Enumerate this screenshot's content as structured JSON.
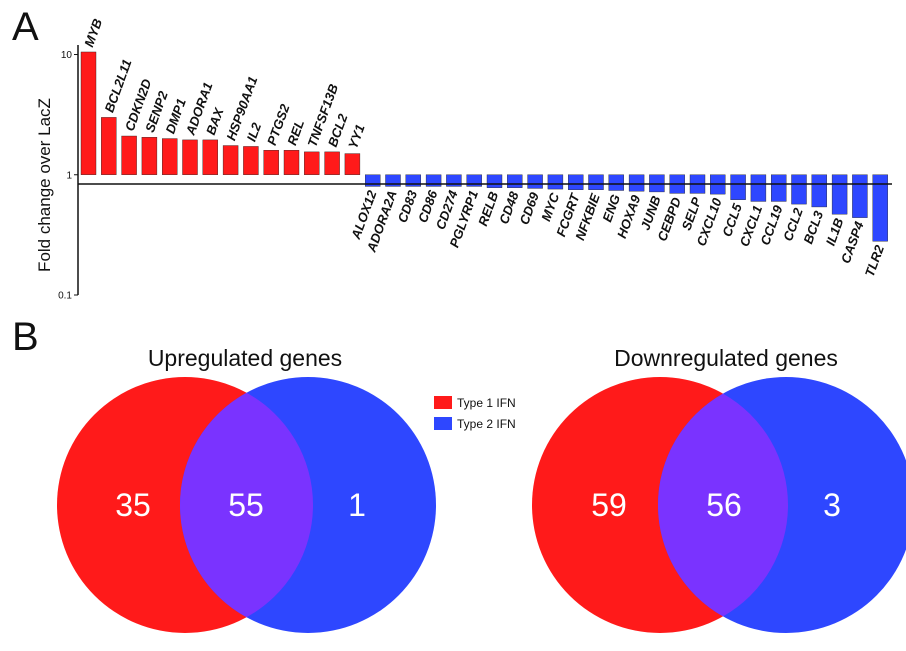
{
  "panel_a_label": "A",
  "panel_b_label": "B",
  "colors": {
    "up": "#ff1a1a",
    "down": "#2e47ff",
    "overlap": "#7a33ff",
    "axis": "#111111"
  },
  "chart_data": [
    {
      "type": "bar",
      "ylabel": "Fold change over LacZ",
      "yscale": "log",
      "ylim": [
        0.1,
        12
      ],
      "yticks": [
        {
          "value": 10,
          "label": "10"
        },
        {
          "value": 1,
          "label": "1"
        },
        {
          "value": 0.1,
          "label": "0.1"
        }
      ],
      "baseline": 1,
      "grid": false,
      "categories": [
        "MYB",
        "BCL2L11",
        "CDKN2D",
        "SENP2",
        "DMP1",
        "ADORA1",
        "BAX",
        "HSP90AA1",
        "IL2",
        "PTGS2",
        "REL",
        "TNFSF13B",
        "BCL2",
        "YY1",
        "ALOX12",
        "ADORA2A",
        "CD83",
        "CD86",
        "CD274",
        "PGLYRP1",
        "RELB",
        "CD48",
        "CD69",
        "MYC",
        "FCGRT",
        "NFKBIE",
        "ENG",
        "HOXA9",
        "JUNB",
        "CEBPD",
        "SELP",
        "CXCL10",
        "CCL5",
        "CXCL1",
        "CCL19",
        "CCL2",
        "BCL3",
        "IL1B",
        "CASP4",
        "TLR2"
      ],
      "values": [
        10.5,
        3.0,
        2.1,
        2.05,
        2.0,
        1.95,
        1.95,
        1.75,
        1.72,
        1.6,
        1.6,
        1.55,
        1.55,
        1.5,
        0.8,
        0.8,
        0.8,
        0.8,
        0.8,
        0.8,
        0.78,
        0.78,
        0.77,
        0.76,
        0.75,
        0.75,
        0.74,
        0.73,
        0.72,
        0.7,
        0.7,
        0.69,
        0.62,
        0.6,
        0.6,
        0.57,
        0.54,
        0.47,
        0.44,
        0.28
      ],
      "direction": [
        "up",
        "up",
        "up",
        "up",
        "up",
        "up",
        "up",
        "up",
        "up",
        "up",
        "up",
        "up",
        "up",
        "up",
        "down",
        "down",
        "down",
        "down",
        "down",
        "down",
        "down",
        "down",
        "down",
        "down",
        "down",
        "down",
        "down",
        "down",
        "down",
        "down",
        "down",
        "down",
        "down",
        "down",
        "down",
        "down",
        "down",
        "down",
        "down",
        "down"
      ]
    },
    {
      "type": "venn",
      "title": "Upregulated genes",
      "sets": [
        "Type 1 IFN",
        "Type 2 IFN"
      ],
      "values": {
        "only_a": "35",
        "both": "55",
        "only_b": "1"
      }
    },
    {
      "type": "venn",
      "title": "Downregulated genes",
      "sets": [
        "Type 1 IFN",
        "Type 2 IFN"
      ],
      "values": {
        "only_a": "59",
        "both": "56",
        "only_b": "3"
      }
    }
  ],
  "legend": {
    "placement": "center",
    "items": [
      {
        "label": "Type 1 IFN",
        "color": "#ff1a1a"
      },
      {
        "label": "Type 2 IFN",
        "color": "#2e47ff"
      }
    ]
  }
}
